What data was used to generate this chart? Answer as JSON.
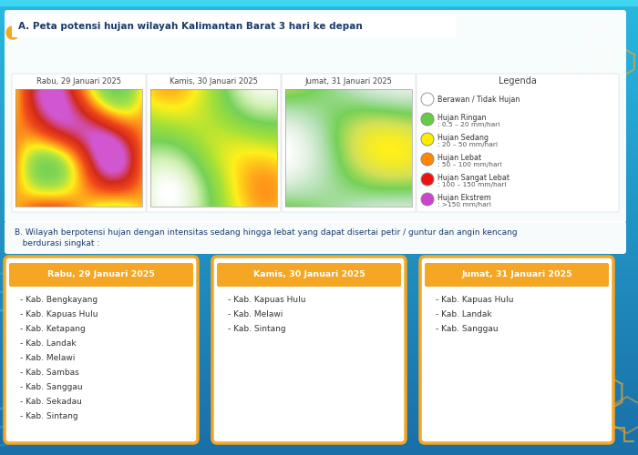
{
  "title_section_a": "A. Peta potensi hujan wilayah Kalimantan Barat 3 hari ke depan",
  "title_section_b1": "B. Wilayah berpotensi hujan dengan intensitas sedang hingga lebat yang dapat disertai petir / guntur dan angin kencang",
  "title_section_b2": "   berdurasi singkat :",
  "panel_titles": [
    "Rabu, 29 Januari 2025",
    "Kamis, 30 Januari 2025",
    "Jumat, 31 Januari 2025"
  ],
  "legend_title": "Legenda",
  "legend_items": [
    {
      "label": "Berawan / Tidak Hujan",
      "desc": "",
      "color": "#ffffff",
      "border": "#aaaaaa"
    },
    {
      "label": "Hujan Ringan",
      "desc": ": 0.5 – 20 mm/hari",
      "color": "#66cc44"
    },
    {
      "label": "Hujan Sedang",
      "desc": ": 20 – 50 mm/hari",
      "color": "#ffee00"
    },
    {
      "label": "Hujan Lebat",
      "desc": ": 50 – 100 mm/hari",
      "color": "#ff8800"
    },
    {
      "label": "Hujan Sangat Lebat",
      "desc": ": 100 – 150 mm/hari",
      "color": "#ee1111"
    },
    {
      "label": "Hujan Ekstrem",
      "desc": ": >150 mm/hari",
      "color": "#cc44cc"
    }
  ],
  "card_titles": [
    "Rabu, 29 Januari 2025",
    "Kamis, 30 Januari 2025",
    "Jumat, 31 Januari 2025"
  ],
  "card_items": [
    [
      "- Kab. Bengkayang",
      "- Kab. Kapuas Hulu",
      "- Kab. Ketapang",
      "- Kab. Landak",
      "- Kab. Melawi",
      "- Kab. Sambas",
      "- Kab. Sanggau",
      "- Kab. Sekadau",
      "- Kab. Sintang"
    ],
    [
      "- Kab. Kapuas Hulu",
      "- Kab. Melawi",
      "- Kab. Sintang"
    ],
    [
      "- Kab. Kapuas Hulu",
      "- Kab. Landak",
      "- Kab. Sanggau"
    ]
  ],
  "card_title_bg": "#f5a623",
  "card_border": "#f5a623",
  "text_dark_blue": "#1a3a6b",
  "accent_yellow": "#f5a623",
  "bg_top": "#29b8e0",
  "bg_bottom": "#1a6fa8"
}
